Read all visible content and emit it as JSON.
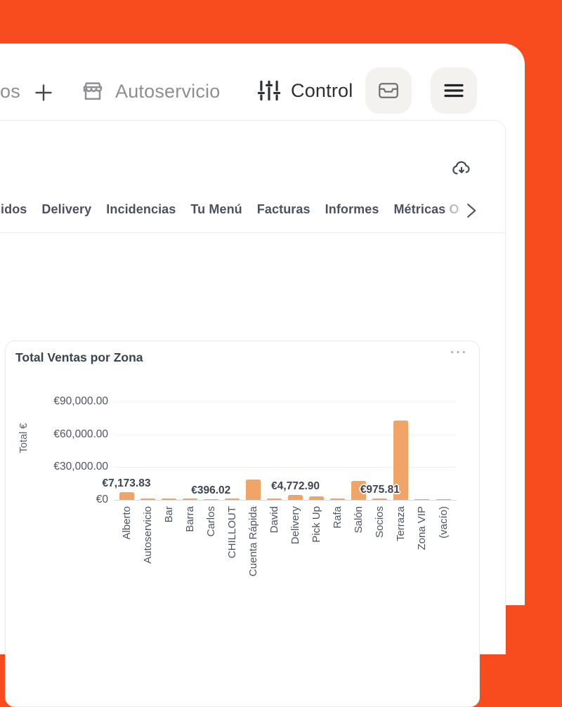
{
  "page": {
    "background_color": "#F84C1E",
    "accent_bar_color": "#F0A468"
  },
  "header": {
    "truncated_item": "os",
    "items": [
      {
        "label": "Autoservicio",
        "icon": "storefront-icon"
      },
      {
        "label": "Control",
        "icon": "sliders-icon"
      }
    ],
    "buttons": [
      {
        "icon": "cash-drawer-icon"
      },
      {
        "icon": "hamburger-menu-icon"
      }
    ],
    "add_icon": "plus-icon"
  },
  "toolbar": {
    "download_icon": "cloud-download-icon"
  },
  "tabs": {
    "items": [
      "idos",
      "Delivery",
      "Incidencias",
      "Tu Menú",
      "Facturas",
      "Informes"
    ],
    "overflow_tab": {
      "visible_part": "Métricas ",
      "faded_part": "Obso"
    },
    "scroll_icon": "chevron-right-icon"
  },
  "card": {
    "title": "Total Ventas por Zona",
    "menu": "···"
  },
  "chart_data": {
    "type": "bar",
    "title": "Total Ventas por Zona",
    "xlabel": "",
    "ylabel": "Total €",
    "ylim": [
      0,
      90000
    ],
    "grid": true,
    "legend_position": "none",
    "x_label_rotation": "vertical",
    "bar_color": "#F0A468",
    "y_ticks": [
      {
        "value": 0,
        "label": "€0"
      },
      {
        "value": 30000,
        "label": "€30,000.00"
      },
      {
        "value": 60000,
        "label": "€60,000.00"
      },
      {
        "value": 90000,
        "label": "€90,000.00"
      }
    ],
    "categories": [
      "Alberto",
      "Autoservicio",
      "Bar",
      "Barra",
      "Carlos",
      "CHILLOUT",
      "Cuenta Rápida",
      "David",
      "Delivery",
      "Pick Up",
      "Rafa",
      "Salón",
      "Socios",
      "Terraza",
      "Zona VIP",
      "(vacío)"
    ],
    "values": [
      7173.83,
      1200,
      1100,
      1200,
      396.02,
      1300,
      18600,
      1100,
      4772.9,
      3100,
      1000,
      17200,
      975.81,
      72500,
      900,
      800
    ],
    "data_labels": [
      {
        "index": 0,
        "category": "Alberto",
        "text": "€7,173.83"
      },
      {
        "index": 4,
        "category": "Carlos",
        "text": "€396.02"
      },
      {
        "index": 8,
        "category": "Delivery",
        "text": "€4,772.90"
      },
      {
        "index": 12,
        "category": "Socios",
        "text": "€975.81"
      }
    ]
  }
}
